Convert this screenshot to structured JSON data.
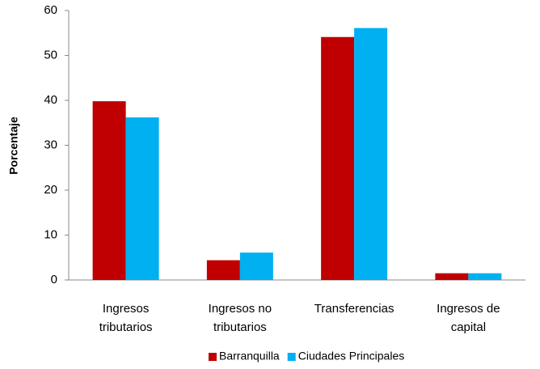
{
  "chart_data": {
    "type": "bar",
    "y_label": "Porcentaje",
    "categories": [
      "Ingresos tributarios",
      "Ingresos no tributarios",
      "Transferencias",
      "Ingresos de capital"
    ],
    "series": [
      {
        "name": "Barranquilla",
        "color": "#c00000",
        "values": [
          39.8,
          4.4,
          54.1,
          1.5
        ]
      },
      {
        "name": "Ciudades Principales",
        "color": "#00b0f0",
        "values": [
          36.2,
          6.1,
          56.1,
          1.5
        ]
      }
    ],
    "ylim": [
      0,
      60
    ],
    "yticks": [
      0,
      10,
      20,
      30,
      40,
      50,
      60
    ],
    "grid": false,
    "legend": "bottom"
  }
}
